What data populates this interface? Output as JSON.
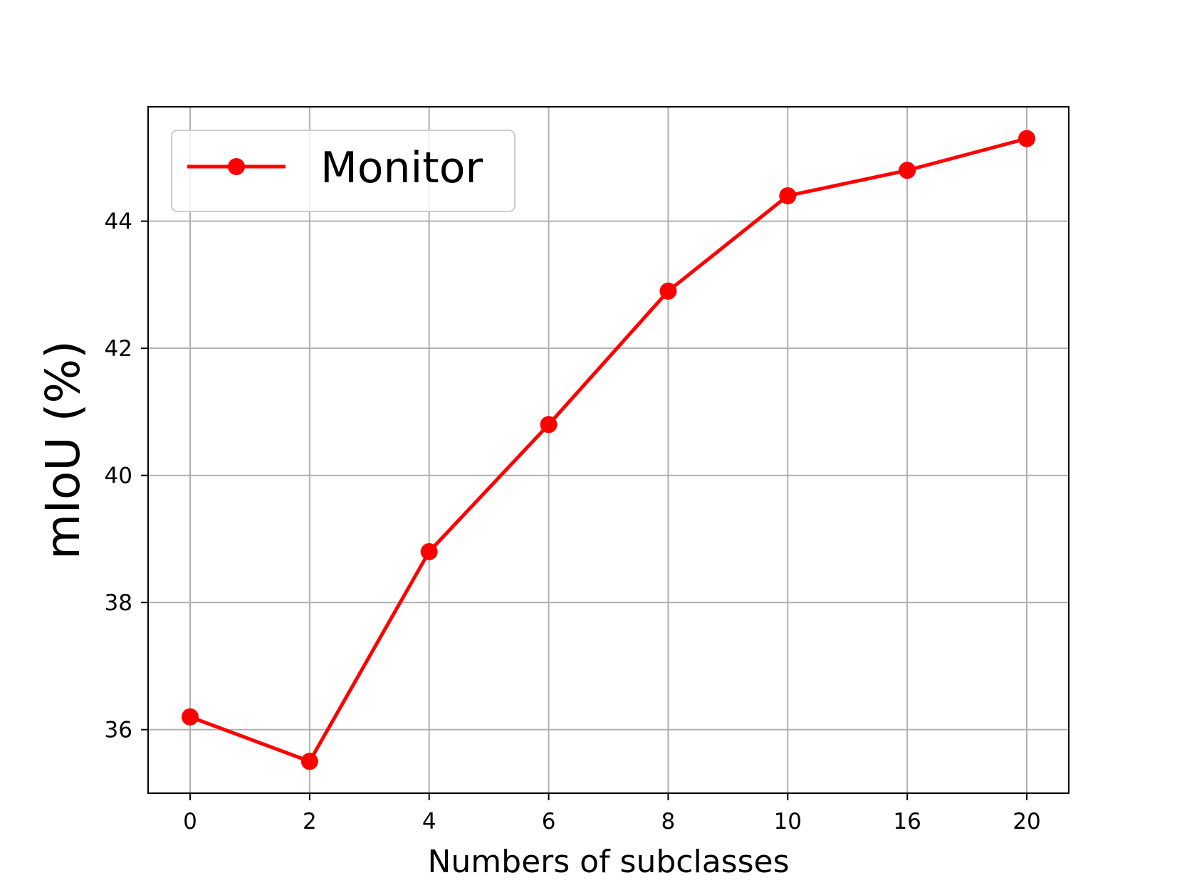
{
  "chart_data": {
    "type": "line",
    "categories": [
      "0",
      "2",
      "4",
      "6",
      "8",
      "10",
      "16",
      "20"
    ],
    "series": [
      {
        "name": "Monitor",
        "values": [
          36.2,
          35.5,
          38.8,
          40.8,
          42.9,
          44.4,
          44.8,
          45.3
        ]
      }
    ],
    "xlabel": "Numbers of subclasses",
    "ylabel": "mIoU (%)",
    "ylim": [
      35.0,
      45.8
    ],
    "yticks": [
      36,
      38,
      40,
      42,
      44
    ],
    "grid": true,
    "legend": "upper-left",
    "colors": {
      "series": "#ff0000",
      "grid": "#b0b0b0",
      "axis": "#000000",
      "legend_border": "#cccccc"
    }
  }
}
